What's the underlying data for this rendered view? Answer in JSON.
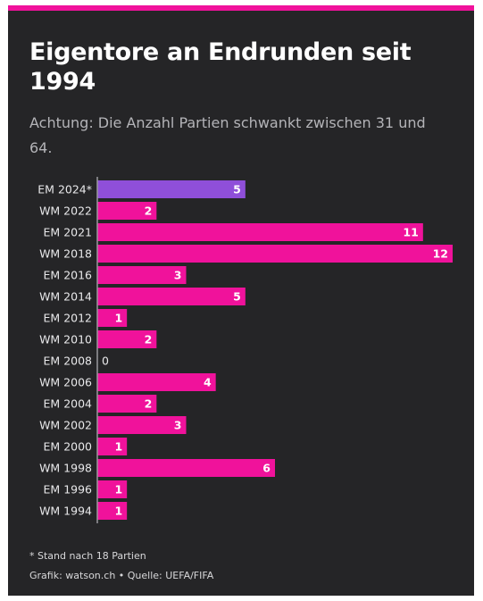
{
  "colors": {
    "accent": "#f0129b",
    "highlight": "#8f4fd9",
    "background": "#252527"
  },
  "chart_data": {
    "type": "bar",
    "orientation": "horizontal",
    "title": "Eigentore an Endrunden seit 1994",
    "subtitle": "Achtung: Die Anzahl Partien schwankt zwischen 31 und 64.",
    "categories": [
      "EM 2024*",
      "WM 2022",
      "EM 2021",
      "WM 2018",
      "EM 2016",
      "WM 2014",
      "EM 2012",
      "WM 2010",
      "EM 2008",
      "WM 2006",
      "EM 2004",
      "WM 2002",
      "EM 2000",
      "WM 1998",
      "EM 1996",
      "WM 1994"
    ],
    "values": [
      5,
      2,
      11,
      12,
      3,
      5,
      1,
      2,
      0,
      4,
      2,
      3,
      1,
      6,
      1,
      1
    ],
    "highlighted_category": "EM 2024*",
    "xlim": [
      0,
      12
    ],
    "grid": false,
    "legend": "none"
  },
  "footnote": "* Stand nach 18 Partien",
  "credit": "Grafik: watson.ch • Quelle: UEFA/FIFA"
}
